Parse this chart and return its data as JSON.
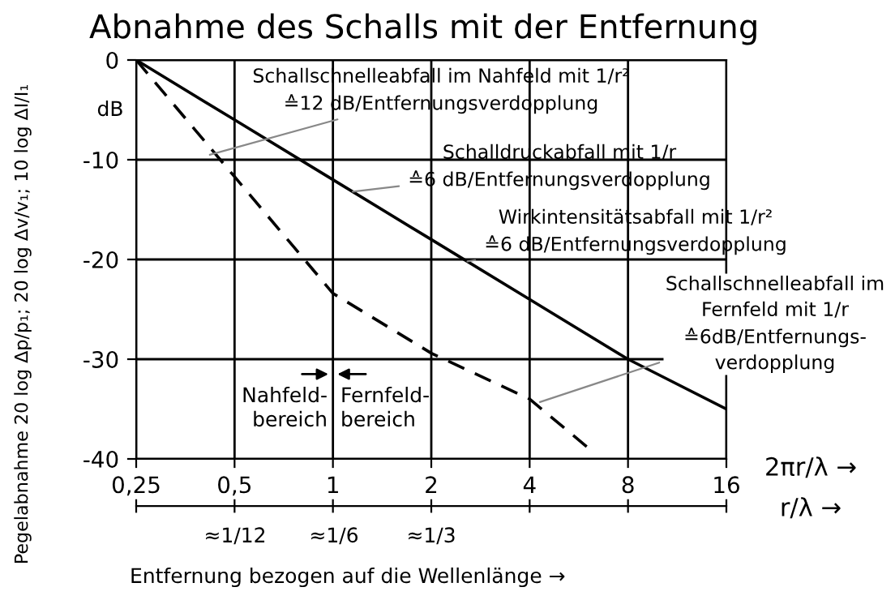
{
  "chart_data": {
    "type": "line",
    "title": "Abnahme des Schalls mit der Entfernung",
    "xlabel": "2πr/λ →",
    "x2label": "r/λ →",
    "ylabel": "Pegelabnahme 20 log Δp/p₁; 20 log Δv/v₁; 10 log ΔI/I₁",
    "log": "x",
    "xlim": [
      0.25,
      16
    ],
    "xticks": [
      {
        "value": 0.25,
        "label": "0,25"
      },
      {
        "value": 0.5,
        "label": "0,5"
      },
      1,
      2,
      4,
      8,
      16
    ],
    "ylim": [
      -40,
      0
    ],
    "yticks": [
      -40,
      -30,
      -20,
      -10,
      0
    ],
    "grid": true,
    "series": [
      {
        "color": "#000000",
        "line_style": "solid",
        "x": [
          0.25,
          0.5,
          1,
          2,
          4,
          8,
          16
        ],
        "values": [
          0,
          -6,
          -12,
          -18,
          -24,
          -30,
          -35
        ]
      },
      {
        "color": "#000000",
        "line_style": "dashed",
        "x": [
          0.25,
          0.5,
          1,
          2,
          4,
          6.1
        ],
        "values": [
          0,
          -11.7,
          -23.4,
          -29.4,
          -34,
          -39
        ]
      }
    ],
    "annotations": [
      {
        "text": "Schallschnelleabfall im Nahfeld mit 1/r²\n≙12 dB/Entfernungsverdopplung",
        "x": 0.42,
        "y": -9.5
      },
      {
        "text": "Schalldruckabfall mit 1/r\n≙6 dB/Entfernungsverdopplung",
        "x": 1.15,
        "y": -13.2
      },
      {
        "text": "Wirkintensitätsabfall mit 1/r²\n≙6 dB/Entfernungsverdopplung",
        "x": 2.58,
        "y": -20.2
      },
      {
        "text": "Schallschnelleabfall im\nFernfeld mit 1/r\n≙6dB/Entfernungs-\nverdopplung",
        "x": 4.3,
        "y": -34.3
      },
      "Nahfeld-\nbereich",
      "Fernfeld-\nbereich",
      "dB",
      "Entfernung bezogen auf die Wellenlänge →",
      "≈1/12",
      "≈1/6",
      "≈1/3"
    ]
  }
}
